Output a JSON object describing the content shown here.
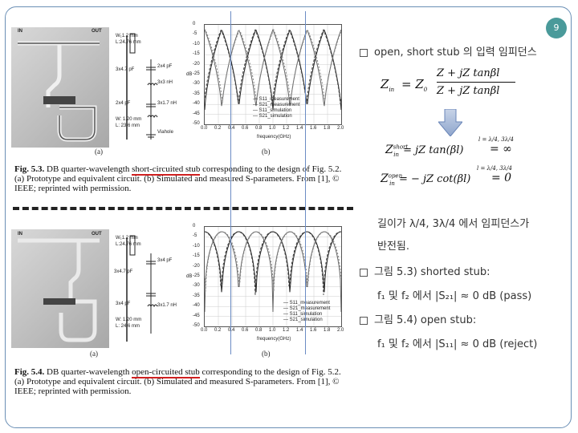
{
  "page_number": "9",
  "fig53": {
    "annot_w1": "W₁1.2 mm",
    "annot_l1": "L:24.76 mm",
    "annot_cap1": "3x4.7 pF",
    "annot_cap2": "2x4 pF",
    "annot_ind": "3x3 nH",
    "annot_cap3": "2x4 pF",
    "annot_ind2": "3x1.7 nH",
    "annot_w": "W: 1.20 mm",
    "annot_l": "L: 23.6 mm",
    "annot_via": "Viahole",
    "in_label": "IN",
    "out_label": "OUT",
    "legend": [
      "S11_measurement",
      "S21_measurement",
      "S11_simulation",
      "S21_simulation"
    ],
    "xlabel": "frequency(GHz)",
    "ylabel": "dB",
    "sub_a": "(a)",
    "sub_b": "(b)",
    "caption_num": "Fig. 5.3.",
    "caption_pre": "DB quarter-wavelength ",
    "caption_hl": "short-circuited stub",
    "caption_post": " corresponding to the design of Fig. 5.2. (a) Prototype and equivalent circuit. (b) Simulated and measured S-parameters. From [1], © IEEE; reprinted with permission."
  },
  "fig54": {
    "annot_w1": "W₁1.2 mm",
    "annot_l1": "L:24.76 mm",
    "annot_cap1": "3x4.7 pF",
    "annot_cap2": "3x4 pF",
    "annot_cap3": "3x4 pF",
    "annot_ind": "3x1.7 nH",
    "annot_w": "W: 1.20 mm",
    "annot_l": "L: 24.6 mm",
    "in_label": "IN",
    "out_label": "OUT",
    "legend": [
      "S11_measurement",
      "S21_measurement",
      "S11_simulation",
      "S21_simulation"
    ],
    "xlabel": "frequency(GHz)",
    "ylabel": "dB",
    "sub_a": "(a)",
    "sub_b": "(b)",
    "caption_num": "Fig. 5.4.",
    "caption_pre": "DB quarter-wavelength ",
    "caption_hl": "open-circuited stub",
    "caption_post": " corresponding to the design of Fig. 5.2. (a) Prototype and equivalent circuit. (b) Simulated and measured S-parameters. From [1], © IEEE; reprinted with permission."
  },
  "xticks": [
    "0.0",
    "0.2",
    "0.4",
    "0.6",
    "0.8",
    "1.0",
    "1.2",
    "1.4",
    "1.6",
    "1.8",
    "2.0"
  ],
  "yticks": [
    "0",
    "-5",
    "-10",
    "-15",
    "-20",
    "-25",
    "-30",
    "-35",
    "-40",
    "-45",
    "-50"
  ],
  "right": {
    "heading": "open, short stub 의 입력 임피던스",
    "zin_lhs": "Z",
    "zin_sub": "in",
    "zin_eq": "= Z",
    "zin_sub0": "0",
    "zin_num": "Z + jZ tanβl",
    "zin_den": "Z + jZ tanβl",
    "short_lhs": "Z",
    "short_sup": "short",
    "short_sub": "in",
    "short_rhs": "= jZ tan(βl)",
    "short_cond": "l = λ/4, 3λ/4",
    "short_val": "= ∞",
    "open_lhs": "Z",
    "open_sup": "open",
    "open_sub": "in",
    "open_rhs": "= − jZ cot(βl)",
    "open_cond": "l = λ/4, 3λ/4",
    "open_val": "= 0",
    "note1": "길이가 λ/4, 3λ/4 에서 임피던스가",
    "note2": "반전됨.",
    "b2": "그림 5.3) shorted stub:",
    "b2_sub": "f₁ 및 f₂ 에서 |S₂₁| ≈ 0 dB (pass)",
    "b3": "그림 5.4) open stub:",
    "b3_sub": "f₁ 및 f₂ 에서 |S₁₁| ≈ 0 dB (reject)"
  }
}
